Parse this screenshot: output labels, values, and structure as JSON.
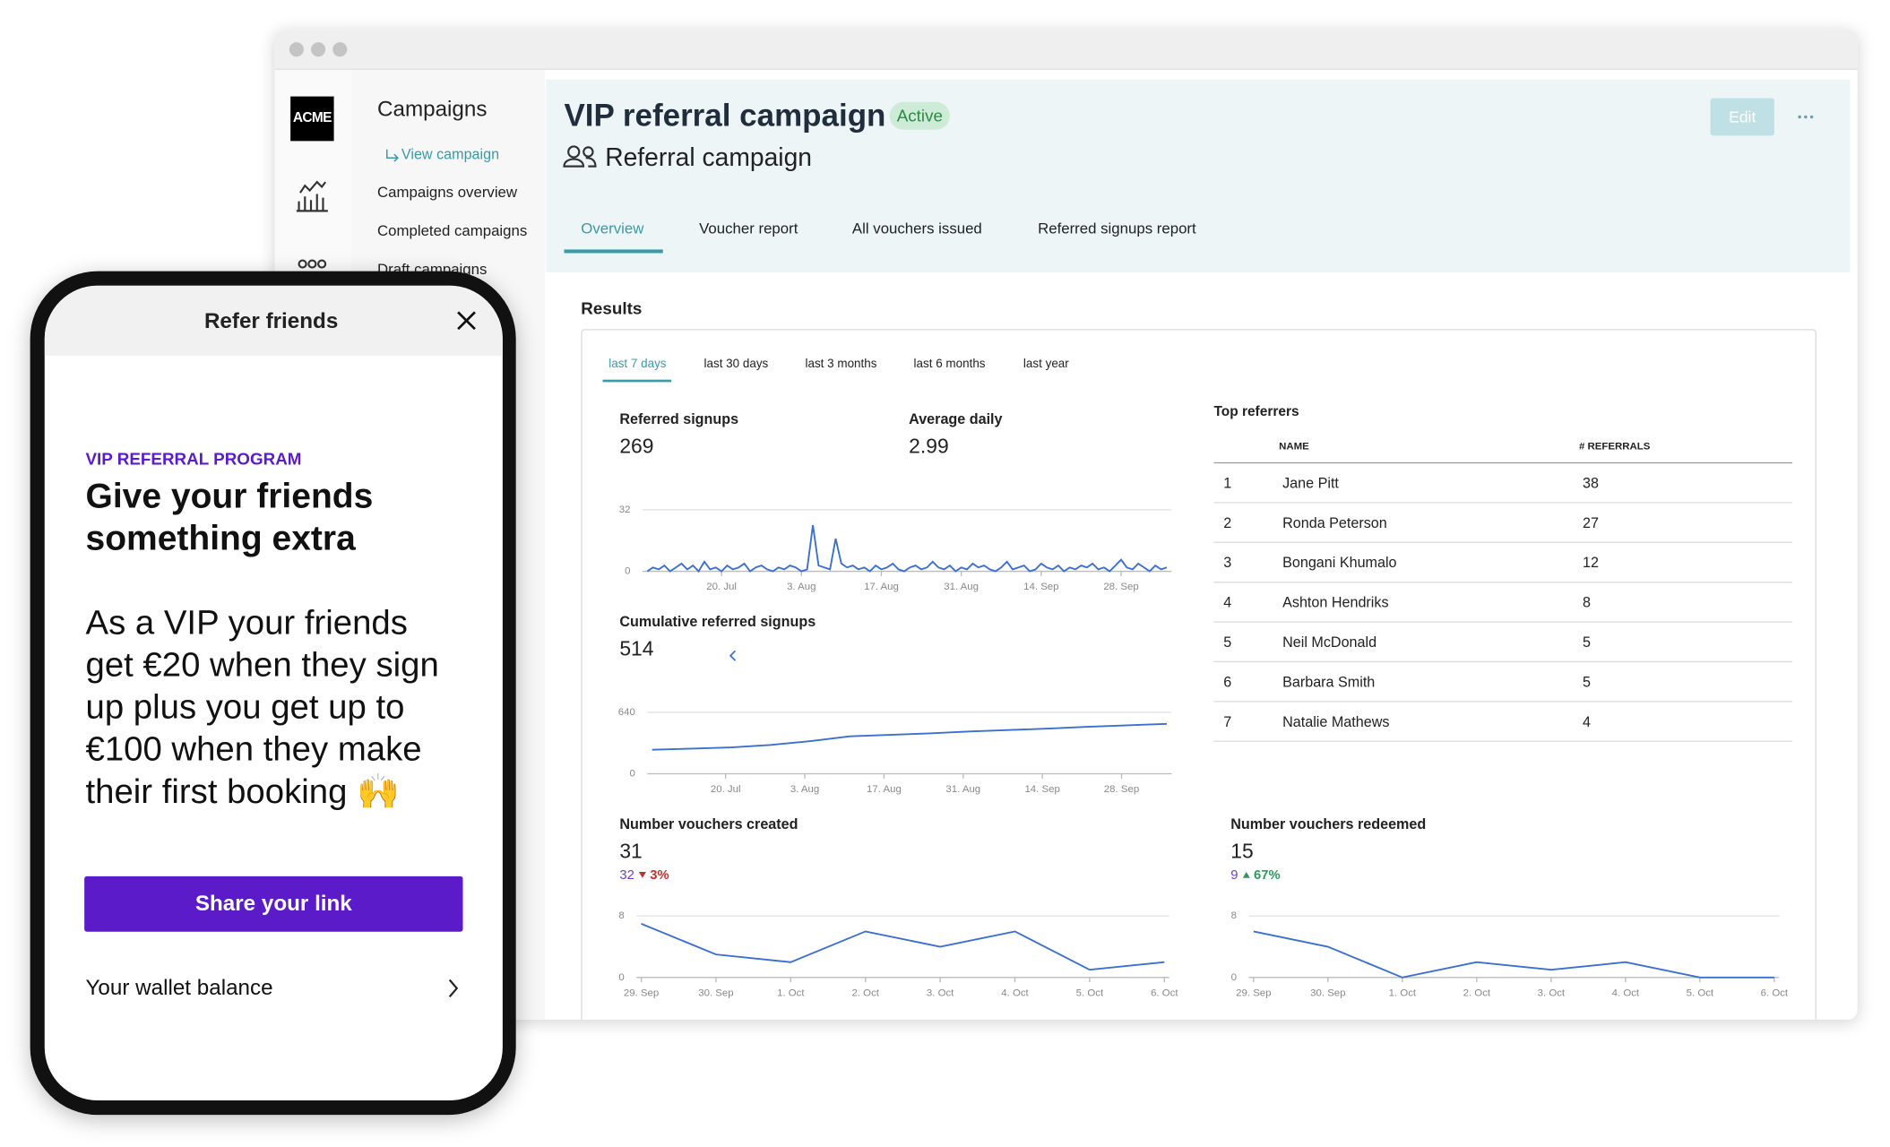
{
  "sidebar": {
    "logo": "ACME",
    "title": "Campaigns",
    "links": [
      "View campaign",
      "Campaigns overview",
      "Completed campaigns",
      "Draft campaigns"
    ]
  },
  "header": {
    "title": "VIP referral campaign",
    "status": "Active",
    "subtitle": "Referral campaign",
    "edit": "Edit",
    "tabs": [
      "Overview",
      "Voucher report",
      "All vouchers issued",
      "Referred signups report"
    ]
  },
  "results": {
    "title": "Results",
    "periods": [
      "last 7 days",
      "last 30 days",
      "last 3 months",
      "last 6 months",
      "last year"
    ]
  },
  "metrics": {
    "referred_signups": {
      "label": "Referred signups",
      "value": 269
    },
    "average_daily": {
      "label": "Average daily",
      "value": 2.99
    },
    "cumulative": {
      "label": "Cumulative referred signups",
      "value": 514
    },
    "vouchers_created": {
      "label": "Number vouchers created",
      "value": 31,
      "previous": 32,
      "change": "3%",
      "direction": "down"
    },
    "vouchers_redeemed": {
      "label": "Number vouchers redeemed",
      "value": 15,
      "previous": 9,
      "change": "67%",
      "direction": "up"
    }
  },
  "chart_data": [
    {
      "type": "line",
      "color": "#3b6fd0",
      "xlim": [
        0,
        91
      ],
      "ylim": [
        0,
        32
      ],
      "yticks": [
        0,
        32
      ],
      "xticks": [
        {
          "value": 13,
          "label": "20. Jul"
        },
        {
          "value": 27,
          "label": "3. Aug"
        },
        {
          "value": 41,
          "label": "17. Aug"
        },
        {
          "value": 55,
          "label": "31. Aug"
        },
        {
          "value": 69,
          "label": "14. Sep"
        },
        {
          "value": 83,
          "label": "28. Sep"
        }
      ],
      "values": [
        0,
        2,
        1,
        3,
        0,
        2,
        4,
        1,
        3,
        0,
        5,
        1,
        2,
        0,
        3,
        1,
        2,
        4,
        0,
        2,
        3,
        1,
        0,
        2,
        1,
        3,
        2,
        0,
        1,
        24,
        3,
        2,
        1,
        17,
        4,
        2,
        3,
        1,
        2,
        0,
        3,
        1,
        2,
        4,
        1,
        0,
        2,
        3,
        1,
        2,
        5,
        2,
        1,
        3,
        0,
        2,
        1,
        4,
        2,
        3,
        1,
        0,
        2,
        5,
        1,
        2,
        3,
        0,
        1,
        4,
        2,
        1,
        3,
        0,
        2,
        1,
        3,
        2,
        4,
        1,
        2,
        0,
        3,
        6,
        2,
        1,
        4,
        2,
        0,
        3,
        1,
        2
      ]
    },
    {
      "type": "line",
      "color": "#3b6fd0",
      "xlim": [
        0,
        91
      ],
      "ylim": [
        0,
        640
      ],
      "yticks": [
        0,
        640
      ],
      "xticks": [
        {
          "value": 13,
          "label": "20. Jul"
        },
        {
          "value": 27,
          "label": "3. Aug"
        },
        {
          "value": 41,
          "label": "17. Aug"
        },
        {
          "value": 55,
          "label": "31. Aug"
        },
        {
          "value": 69,
          "label": "14. Sep"
        },
        {
          "value": 83,
          "label": "28. Sep"
        }
      ],
      "x": [
        0,
        7,
        14,
        21,
        28,
        35,
        42,
        49,
        56,
        63,
        70,
        77,
        84,
        91
      ],
      "values": [
        250,
        262,
        275,
        300,
        340,
        390,
        405,
        420,
        440,
        455,
        470,
        490,
        505,
        520
      ]
    },
    {
      "type": "line",
      "color": "#3b6fd0",
      "ylim": [
        0,
        8
      ],
      "yticks": [
        0,
        8
      ],
      "categories": [
        "29. Sep",
        "30. Sep",
        "1. Oct",
        "2. Oct",
        "3. Oct",
        "4. Oct",
        "5. Oct",
        "6. Oct"
      ],
      "values": [
        7,
        3,
        2,
        6,
        4,
        6,
        1,
        2
      ]
    },
    {
      "type": "line",
      "color": "#3b6fd0",
      "ylim": [
        0,
        8
      ],
      "yticks": [
        0,
        8
      ],
      "categories": [
        "29. Sep",
        "30. Sep",
        "1. Oct",
        "2. Oct",
        "3. Oct",
        "4. Oct",
        "5. Oct",
        "6. Oct"
      ],
      "values": [
        6,
        4,
        0,
        2,
        1,
        2,
        0,
        0
      ]
    }
  ],
  "top_referrers": {
    "title": "Top referrers",
    "columns": [
      "NAME",
      "# REFERRALS"
    ],
    "rows": [
      [
        1,
        "Jane Pitt",
        38
      ],
      [
        2,
        "Ronda Peterson",
        27
      ],
      [
        3,
        "Bongani Khumalo",
        12
      ],
      [
        4,
        "Ashton Hendriks",
        8
      ],
      [
        5,
        "Neil McDonald",
        5
      ],
      [
        6,
        "Barbara Smith",
        5
      ],
      [
        7,
        "Natalie Mathews",
        4
      ]
    ]
  },
  "phone": {
    "title": "Refer friends",
    "kicker": "VIP REFERRAL PROGRAM",
    "headline": "Give your friends something extra",
    "body": "As a VIP your friends get €20 when they sign up plus you get up to €100 when they make their first booking 🙌",
    "button": "Share your link",
    "wallet": "Your wallet balance"
  }
}
